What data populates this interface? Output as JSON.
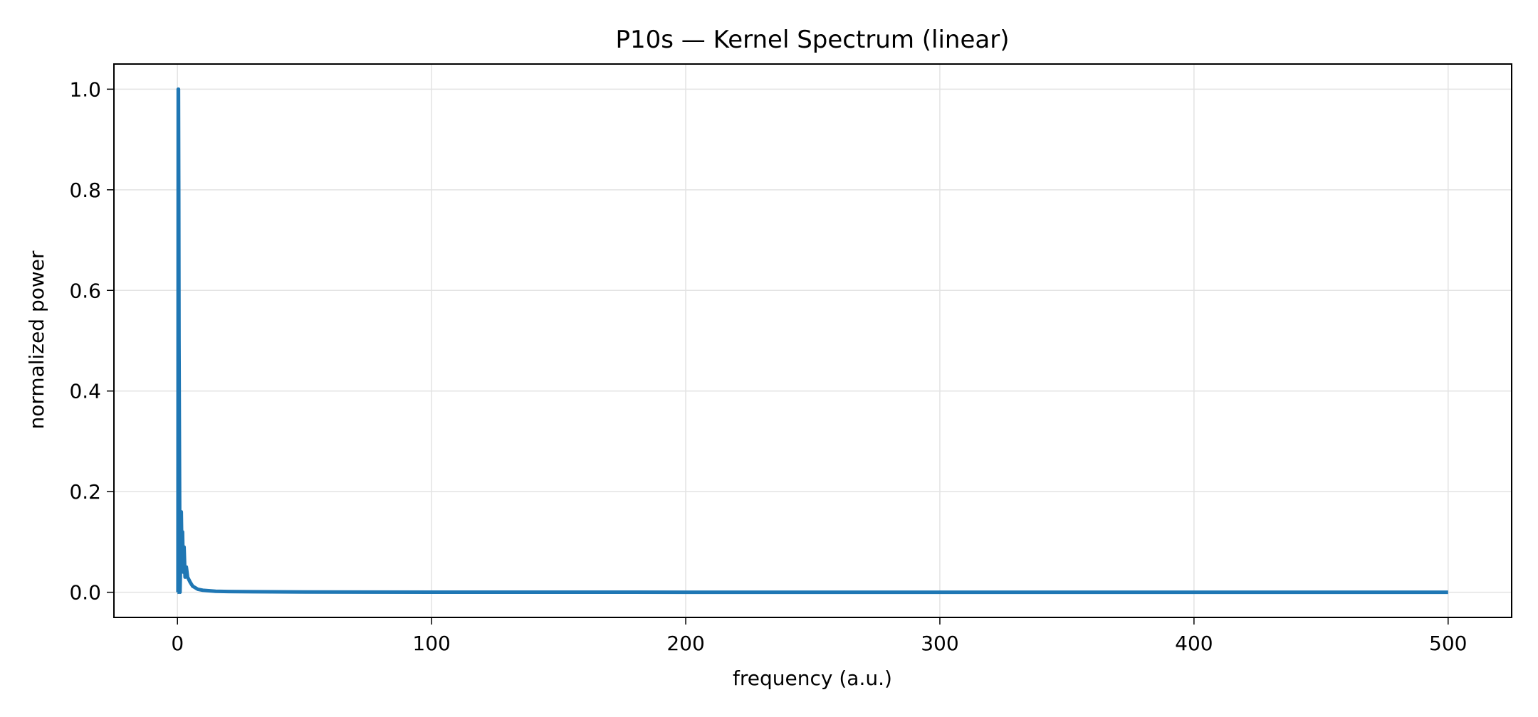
{
  "chart_data": {
    "type": "line",
    "title": "P10s — Kernel Spectrum (linear)",
    "xlabel": "frequency (a.u.)",
    "ylabel": "normalized power",
    "xlim": [
      -25,
      525
    ],
    "ylim": [
      -0.05,
      1.05
    ],
    "xticks": [
      0,
      100,
      200,
      300,
      400,
      500
    ],
    "xtick_labels": [
      "0",
      "100",
      "200",
      "300",
      "400",
      "500"
    ],
    "yticks": [
      0.0,
      0.2,
      0.4,
      0.6,
      0.8,
      1.0
    ],
    "ytick_labels": [
      "0.0",
      "0.2",
      "0.4",
      "0.6",
      "0.8",
      "1.0"
    ],
    "grid": true,
    "series": [
      {
        "color": "#1f77b4",
        "x": [
          0,
          0.2,
          0.3,
          0.4,
          0.5,
          0.6,
          0.8,
          1.0,
          1.2,
          1.5,
          1.8,
          2.0,
          2.3,
          2.6,
          3.0,
          3.5,
          4.0,
          5.0,
          6.0,
          8.0,
          10.0,
          15.0,
          20.0,
          30.0,
          50.0,
          100.0,
          200.0,
          300.0,
          400.0,
          500.0
        ],
        "y": [
          0.0,
          0.0,
          1.0,
          1.0,
          0.8,
          0.5,
          0.25,
          0.0,
          0.05,
          0.16,
          0.06,
          0.12,
          0.04,
          0.09,
          0.03,
          0.05,
          0.03,
          0.02,
          0.012,
          0.006,
          0.004,
          0.002,
          0.0015,
          0.001,
          0.0005,
          0.0002,
          0.0001,
          0.0001,
          0.0001,
          0.0
        ]
      }
    ]
  }
}
